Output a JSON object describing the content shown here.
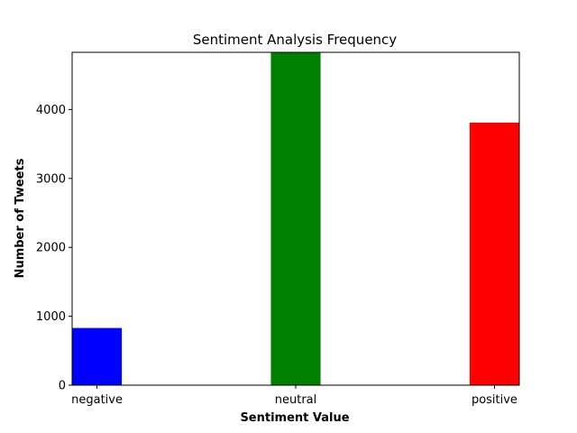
{
  "chart_data": {
    "type": "bar",
    "title": "Sentiment Analysis Frequency",
    "xlabel": "Sentiment Value",
    "ylabel": "Number of Tweets",
    "categories": [
      "negative",
      "neutral",
      "positive"
    ],
    "values": [
      830,
      4830,
      3810
    ],
    "colors": [
      "#0000ff",
      "#008000",
      "#ff0000"
    ],
    "ylim": [
      0,
      4830
    ],
    "yticks": [
      0,
      1000,
      2000,
      3000,
      4000
    ],
    "grid": false
  }
}
